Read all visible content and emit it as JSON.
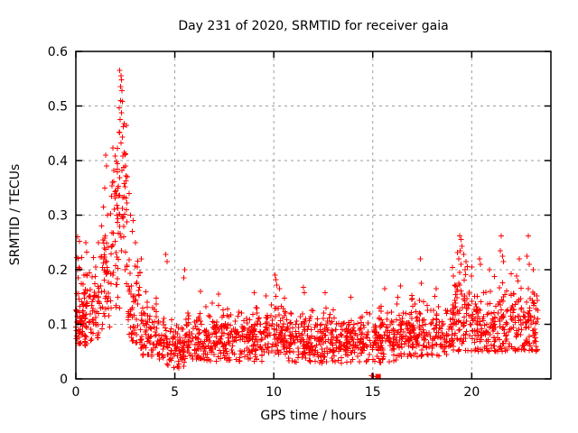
{
  "page": {
    "background": "#ffffff"
  },
  "chart_data": {
    "type": "scatter",
    "title": "Day 231 of 2020, SRMTID for receiver gaia",
    "xlabel": "GPS time / hours",
    "ylabel": "SRMTID / TECUs",
    "xlim": [
      0,
      24
    ],
    "ylim": [
      0,
      0.6
    ],
    "xticks": [
      0,
      5,
      10,
      15,
      20
    ],
    "xtick_labels": [
      "0",
      "5",
      "10",
      "15",
      "20"
    ],
    "yticks": [
      0,
      0.1,
      0.2,
      0.3,
      0.4,
      0.5,
      0.6
    ],
    "ytick_labels": [
      "0",
      "0.1",
      "0.2",
      "0.3",
      "0.4",
      "0.5",
      "0.6"
    ],
    "grid": true,
    "legend": false,
    "marker": "plus-cross",
    "colors": {
      "points": "#ff0000",
      "grid": "#9e9e9e",
      "frame": "#000000",
      "text": "#000000"
    },
    "seed": 20200231,
    "bands": [
      {
        "x0": 0.0,
        "x1": 0.55,
        "n": 75,
        "center": 0.105,
        "spread": 0.026,
        "min": 0.06,
        "max": 0.175
      },
      {
        "x0": 0.02,
        "x1": 0.55,
        "n": 10,
        "center": 0.2,
        "spread": 0.03,
        "min": 0.155,
        "max": 0.262
      },
      {
        "x0": 0.55,
        "x1": 1.25,
        "n": 55,
        "center": 0.135,
        "spread": 0.035,
        "min": 0.07,
        "max": 0.23
      },
      {
        "x0": 1.25,
        "x1": 1.8,
        "n": 50,
        "center": 0.2,
        "spread": 0.06,
        "min": 0.09,
        "max": 0.4
      },
      {
        "x0": 1.8,
        "x1": 2.6,
        "n": 80,
        "center": 0.3,
        "spread": 0.085,
        "min": 0.13,
        "max": 0.545
      },
      {
        "x0": 2.6,
        "x1": 3.25,
        "n": 55,
        "center": 0.135,
        "spread": 0.05,
        "min": 0.065,
        "max": 0.3
      },
      {
        "x0": 3.25,
        "x1": 4.2,
        "n": 80,
        "center": 0.085,
        "spread": 0.03,
        "min": 0.04,
        "max": 0.205
      },
      {
        "x0": 4.2,
        "x1": 5.5,
        "n": 105,
        "center": 0.06,
        "spread": 0.022,
        "min": 0.012,
        "max": 0.125
      },
      {
        "x0": 5.5,
        "x1": 9.5,
        "n": 330,
        "center": 0.072,
        "spread": 0.025,
        "min": 0.032,
        "max": 0.148
      },
      {
        "x0": 9.5,
        "x1": 10.6,
        "n": 95,
        "center": 0.088,
        "spread": 0.028,
        "min": 0.045,
        "max": 0.185
      },
      {
        "x0": 10.6,
        "x1": 14.2,
        "n": 300,
        "center": 0.07,
        "spread": 0.024,
        "min": 0.028,
        "max": 0.15
      },
      {
        "x0": 14.2,
        "x1": 16.2,
        "n": 160,
        "center": 0.068,
        "spread": 0.024,
        "min": 0.03,
        "max": 0.16
      },
      {
        "x0": 16.2,
        "x1": 19.0,
        "n": 230,
        "center": 0.082,
        "spread": 0.028,
        "min": 0.04,
        "max": 0.175
      },
      {
        "x0": 19.0,
        "x1": 20.0,
        "n": 95,
        "center": 0.115,
        "spread": 0.045,
        "min": 0.05,
        "max": 0.26
      },
      {
        "x0": 20.0,
        "x1": 21.3,
        "n": 110,
        "center": 0.095,
        "spread": 0.035,
        "min": 0.05,
        "max": 0.22
      },
      {
        "x0": 21.3,
        "x1": 23.35,
        "n": 175,
        "center": 0.1,
        "spread": 0.04,
        "min": 0.05,
        "max": 0.262
      }
    ],
    "outliers": [
      [
        0.05,
        0.222
      ],
      [
        0.1,
        0.26
      ],
      [
        0.18,
        0.252
      ],
      [
        0.08,
        0.2
      ],
      [
        0.3,
        0.222
      ],
      [
        0.5,
        0.25
      ],
      [
        0.55,
        0.232
      ],
      [
        0.9,
        0.222
      ],
      [
        1.0,
        0.205
      ],
      [
        1.15,
        0.25
      ],
      [
        1.3,
        0.28
      ],
      [
        1.45,
        0.35
      ],
      [
        1.5,
        0.41
      ],
      [
        1.55,
        0.39
      ],
      [
        1.6,
        0.3
      ],
      [
        1.85,
        0.36
      ],
      [
        1.92,
        0.382
      ],
      [
        1.98,
        0.408
      ],
      [
        2.05,
        0.398
      ],
      [
        2.1,
        0.422
      ],
      [
        2.18,
        0.452
      ],
      [
        2.2,
        0.497
      ],
      [
        2.22,
        0.565
      ],
      [
        2.24,
        0.475
      ],
      [
        2.26,
        0.51
      ],
      [
        2.28,
        0.555
      ],
      [
        2.28,
        0.432
      ],
      [
        2.3,
        0.548
      ],
      [
        2.3,
        0.488
      ],
      [
        2.32,
        0.528
      ],
      [
        2.34,
        0.443
      ],
      [
        2.36,
        0.508
      ],
      [
        2.4,
        0.462
      ],
      [
        2.44,
        0.415
      ],
      [
        2.48,
        0.352
      ],
      [
        2.52,
        0.39
      ],
      [
        2.55,
        0.31
      ],
      [
        2.6,
        0.37
      ],
      [
        2.7,
        0.34
      ],
      [
        2.75,
        0.3
      ],
      [
        2.85,
        0.27
      ],
      [
        2.9,
        0.29
      ],
      [
        3.0,
        0.25
      ],
      [
        3.1,
        0.205
      ],
      [
        3.3,
        0.22
      ],
      [
        4.55,
        0.228
      ],
      [
        4.6,
        0.215
      ],
      [
        5.45,
        0.185
      ],
      [
        5.5,
        0.2
      ],
      [
        6.3,
        0.16
      ],
      [
        7.2,
        0.155
      ],
      [
        9.0,
        0.158
      ],
      [
        10.05,
        0.19
      ],
      [
        10.1,
        0.182
      ],
      [
        10.15,
        0.172
      ],
      [
        10.3,
        0.165
      ],
      [
        11.5,
        0.168
      ],
      [
        11.55,
        0.158
      ],
      [
        12.6,
        0.158
      ],
      [
        13.9,
        0.15
      ],
      [
        15.6,
        0.165
      ],
      [
        16.4,
        0.17
      ],
      [
        17.4,
        0.22
      ],
      [
        17.45,
        0.175
      ],
      [
        18.2,
        0.165
      ],
      [
        19.35,
        0.22
      ],
      [
        19.4,
        0.262
      ],
      [
        19.42,
        0.235
      ],
      [
        19.45,
        0.255
      ],
      [
        19.5,
        0.243
      ],
      [
        19.6,
        0.228
      ],
      [
        19.7,
        0.215
      ],
      [
        20.0,
        0.205
      ],
      [
        20.4,
        0.22
      ],
      [
        20.45,
        0.21
      ],
      [
        20.9,
        0.2
      ],
      [
        21.45,
        0.235
      ],
      [
        21.5,
        0.262
      ],
      [
        21.55,
        0.225
      ],
      [
        21.6,
        0.215
      ],
      [
        22.4,
        0.22
      ],
      [
        22.8,
        0.225
      ],
      [
        22.85,
        0.262
      ],
      [
        22.9,
        0.21
      ],
      [
        23.1,
        0.2
      ]
    ],
    "low_points": [
      [
        14.95,
        0.006
      ],
      [
        15.03,
        0.004
      ]
    ],
    "square_points": [
      [
        15.27,
        0.004
      ]
    ]
  }
}
